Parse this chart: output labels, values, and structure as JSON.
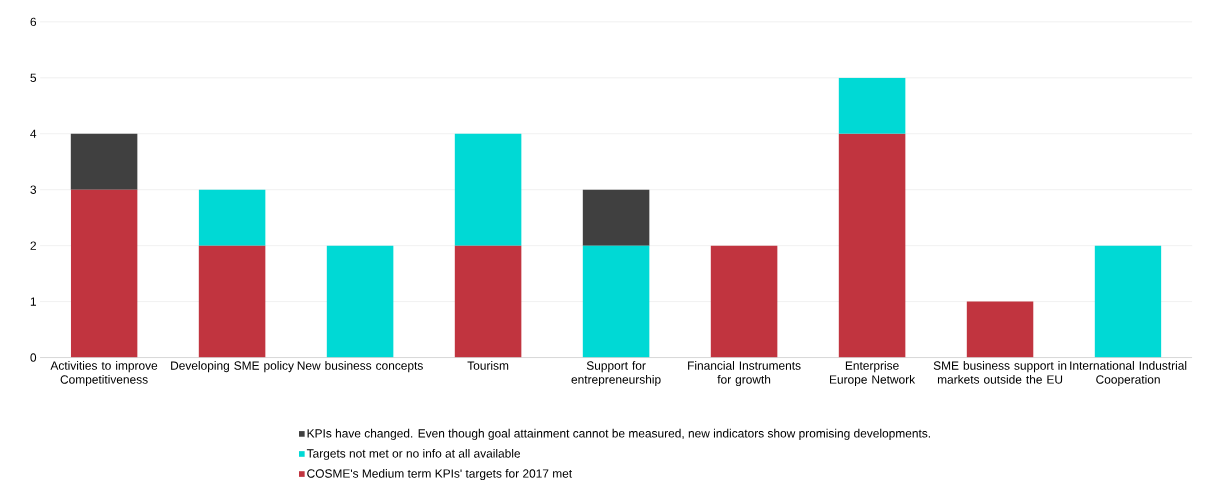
{
  "chart_data": {
    "type": "bar",
    "stacked": true,
    "categories": [
      "Activities to improve Competitiveness",
      "Developing SME policy",
      "New business concepts",
      "Tourism",
      "Support for entrepreneurship",
      "Financial Instruments for growth",
      "Enterprise Europe Network",
      "SME business support in markets outside the EU",
      "International Industrial Cooperation"
    ],
    "series": [
      {
        "name": "COSME's Medium term KPIs' targets for 2017 met",
        "color": "#c1343f",
        "values": [
          3,
          2,
          0,
          2,
          0,
          2,
          4,
          1,
          0
        ]
      },
      {
        "name": "Targets not met or no info at all available",
        "color": "#00d9d5",
        "values": [
          0,
          1,
          2,
          2,
          2,
          0,
          1,
          0,
          2
        ]
      },
      {
        "name": "KPIs have changed. Even though goal attainment cannot be measured, new indicators show promising developments.",
        "color": "#404040",
        "values": [
          1,
          0,
          0,
          0,
          1,
          0,
          0,
          0,
          0
        ]
      }
    ],
    "ylim": [
      0,
      6
    ],
    "yticks": [
      0,
      1,
      2,
      3,
      4,
      5,
      6
    ],
    "grid": "y",
    "legend": "bottom"
  }
}
